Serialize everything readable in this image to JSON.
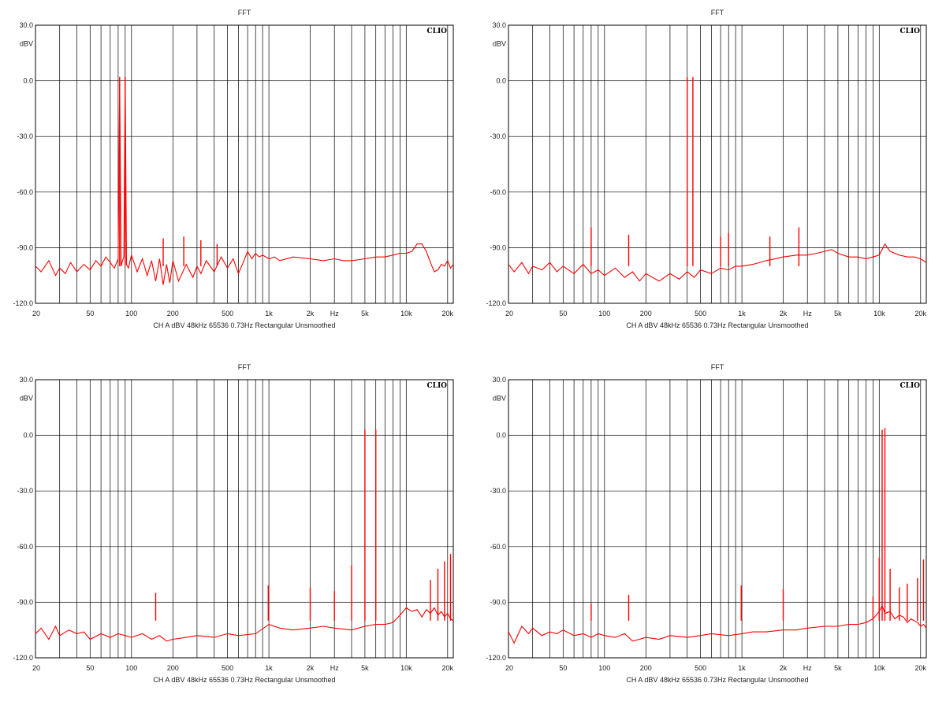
{
  "chart_data": [
    {
      "type": "line",
      "title": "FFT",
      "ylabel": "dBV",
      "badge": "CLIO",
      "xscale": "log",
      "xlim": [
        20,
        22000
      ],
      "ylim": [
        -120,
        30
      ],
      "yticks": [
        "30.0",
        "0.0",
        "-30.0",
        "-60.0",
        "-90.0",
        "-120.0"
      ],
      "xticks": [
        "20",
        "50",
        "100",
        "200",
        "500",
        "1k",
        "2k",
        "Hz",
        "5k",
        "10k",
        "20k"
      ],
      "footer": "CH A  dBV  48kHz  65536  0.73Hz  Rectangular  Unsmoothed",
      "grid": true,
      "color": "#ff0000",
      "series": [
        {
          "x": [
            20,
            22,
            25,
            28,
            30,
            33,
            36,
            40,
            45,
            50,
            55,
            60,
            65,
            70,
            75,
            80,
            82,
            84,
            86,
            88,
            90,
            92,
            95,
            100,
            110,
            120,
            130,
            140,
            150,
            160,
            170,
            180,
            190,
            200,
            220,
            250,
            280,
            300,
            320,
            350,
            400,
            450,
            500,
            550,
            600,
            650,
            700,
            750,
            800,
            850,
            900,
            1000,
            1100,
            1200,
            1500,
            2000,
            2500,
            3000,
            3500,
            4000,
            5000,
            6000,
            7000,
            8000,
            9000,
            10000,
            11000,
            12000,
            13000,
            14000,
            15000,
            16000,
            17000,
            18000,
            19000,
            20000,
            21000,
            22000
          ],
          "y": [
            -100,
            -103,
            -97,
            -105,
            -101,
            -104,
            -98,
            -103,
            -99,
            -102,
            -97,
            -100,
            -95,
            -98,
            -101,
            -96,
            2,
            -100,
            -97,
            -95,
            2,
            -99,
            -101,
            -94,
            -103,
            -96,
            -105,
            -97,
            -108,
            -96,
            -110,
            -99,
            -109,
            -97,
            -108,
            -99,
            -106,
            -100,
            -104,
            -97,
            -103,
            -95,
            -101,
            -96,
            -104,
            -98,
            -92,
            -96,
            -93,
            -95,
            -94,
            -96,
            -95,
            -97,
            -95,
            -96,
            -97,
            -96,
            -97,
            -97,
            -96,
            -95,
            -95,
            -94,
            -93,
            -93,
            -92,
            -88,
            -88,
            -92,
            -98,
            -103,
            -102,
            -99,
            -100,
            -97,
            -101,
            -99
          ]
        }
      ],
      "spikes": [
        {
          "x": 82,
          "y": 2
        },
        {
          "x": 90,
          "y": 2
        },
        {
          "x": 170,
          "y": -85
        },
        {
          "x": 240,
          "y": -84
        },
        {
          "x": 320,
          "y": -86
        },
        {
          "x": 420,
          "y": -88
        }
      ]
    },
    {
      "type": "line",
      "title": "FFT",
      "ylabel": "dBV",
      "badge": "CLIO",
      "xscale": "log",
      "xlim": [
        20,
        22000
      ],
      "ylim": [
        -120,
        30
      ],
      "yticks": [
        "30.0",
        "0.0",
        "-30.0",
        "-60.0",
        "-90.0",
        "-120.0"
      ],
      "xticks": [
        "20",
        "50",
        "100",
        "200",
        "500",
        "1k",
        "2k",
        "Hz",
        "5k",
        "10k",
        "20k"
      ],
      "footer": "CH A  dBV  48kHz  65536  0.73Hz  Rectangular  Unsmoothed",
      "grid": true,
      "color": "#ff0000",
      "series": [
        {
          "x": [
            20,
            22,
            25,
            28,
            30,
            35,
            40,
            45,
            50,
            60,
            70,
            80,
            90,
            100,
            120,
            140,
            160,
            180,
            200,
            250,
            300,
            350,
            400,
            450,
            500,
            600,
            700,
            800,
            900,
            1000,
            1200,
            1500,
            2000,
            2500,
            3000,
            3500,
            4000,
            4500,
            5000,
            6000,
            7000,
            8000,
            9000,
            10000,
            11000,
            12000,
            14000,
            16000,
            18000,
            20000,
            22000
          ],
          "y": [
            -99,
            -103,
            -98,
            -104,
            -100,
            -102,
            -98,
            -103,
            -100,
            -104,
            -99,
            -104,
            -102,
            -105,
            -101,
            -106,
            -103,
            -108,
            -104,
            -108,
            -104,
            -107,
            -103,
            -106,
            -102,
            -104,
            -101,
            -102,
            -100,
            -100,
            -99,
            -97,
            -95,
            -94,
            -94,
            -93,
            -92,
            -91,
            -93,
            -95,
            -95,
            -96,
            -95,
            -94,
            -88,
            -92,
            -94,
            -95,
            -95,
            -96,
            -98
          ]
        }
      ],
      "spikes": [
        {
          "x": 80,
          "y": -79
        },
        {
          "x": 150,
          "y": -83
        },
        {
          "x": 400,
          "y": 2
        },
        {
          "x": 440,
          "y": 2
        },
        {
          "x": 700,
          "y": -84
        },
        {
          "x": 800,
          "y": -82
        },
        {
          "x": 1600,
          "y": -84
        },
        {
          "x": 2600,
          "y": -79
        }
      ]
    },
    {
      "type": "line",
      "title": "FFT",
      "ylabel": "dBV",
      "badge": "CLIO",
      "xscale": "log",
      "xlim": [
        20,
        22000
      ],
      "ylim": [
        -120,
        30
      ],
      "yticks": [
        "30.0",
        "0.0",
        "-30.0",
        "-60.0",
        "-90.0",
        "-120.0"
      ],
      "xticks": [
        "20",
        "50",
        "100",
        "200",
        "500",
        "1k",
        "2k",
        "Hz",
        "5k",
        "10k",
        "20k"
      ],
      "footer": "CH A  dBV  48kHz  65536  0.73Hz  Rectangular  Unsmoothed",
      "grid": true,
      "color": "#ff0000",
      "series": [
        {
          "x": [
            20,
            22,
            25,
            28,
            30,
            35,
            40,
            45,
            50,
            60,
            70,
            80,
            90,
            100,
            120,
            140,
            160,
            180,
            200,
            250,
            300,
            400,
            500,
            600,
            800,
            1000,
            1200,
            1500,
            2000,
            2500,
            3000,
            4000,
            5000,
            6000,
            7000,
            8000,
            9000,
            10000,
            11000,
            12000,
            13000,
            14000,
            15000,
            16000,
            17000,
            18000,
            19000,
            20000,
            21000,
            22000
          ],
          "y": [
            -107,
            -104,
            -110,
            -103,
            -108,
            -105,
            -107,
            -106,
            -110,
            -107,
            -109,
            -107,
            -108,
            -109,
            -107,
            -110,
            -108,
            -111,
            -110,
            -109,
            -108,
            -109,
            -107,
            -108,
            -107,
            -102,
            -104,
            -105,
            -104,
            -103,
            -104,
            -105,
            -103,
            -102,
            -102,
            -101,
            -97,
            -93,
            -95,
            -94,
            -98,
            -94,
            -96,
            -93,
            -97,
            -95,
            -98,
            -96,
            -99,
            -100
          ]
        }
      ],
      "spikes": [
        {
          "x": 150,
          "y": -85
        },
        {
          "x": 990,
          "y": -81
        },
        {
          "x": 2000,
          "y": -82
        },
        {
          "x": 3000,
          "y": -84
        },
        {
          "x": 4000,
          "y": -70
        },
        {
          "x": 5000,
          "y": 3
        },
        {
          "x": 6000,
          "y": 3
        },
        {
          "x": 15000,
          "y": -78
        },
        {
          "x": 17000,
          "y": -72
        },
        {
          "x": 19000,
          "y": -68
        },
        {
          "x": 21000,
          "y": -64
        }
      ]
    },
    {
      "type": "line",
      "title": "FFT",
      "ylabel": "dBV",
      "badge": "CLIO",
      "xscale": "log",
      "xlim": [
        20,
        22000
      ],
      "ylim": [
        -120,
        30
      ],
      "yticks": [
        "30.0",
        "0.0",
        "-30.0",
        "-60.0",
        "-90.0",
        "-120.0"
      ],
      "xticks": [
        "20",
        "50",
        "100",
        "200",
        "500",
        "1k",
        "2k",
        "Hz",
        "5k",
        "10k",
        "20k"
      ],
      "footer": "CH A  dBV  48kHz  65536  0.73Hz  Rectangular  Unsmoothed",
      "grid": true,
      "color": "#ff0000",
      "series": [
        {
          "x": [
            20,
            22,
            25,
            28,
            30,
            35,
            40,
            45,
            50,
            60,
            70,
            80,
            90,
            100,
            120,
            140,
            160,
            180,
            200,
            250,
            300,
            400,
            500,
            600,
            800,
            1000,
            1200,
            1500,
            2000,
            2500,
            3000,
            4000,
            5000,
            6000,
            7000,
            8000,
            9000,
            10000,
            10500,
            11000,
            12000,
            13000,
            14000,
            15000,
            16000,
            17000,
            18000,
            19000,
            20000,
            21000,
            22000
          ],
          "y": [
            -106,
            -112,
            -103,
            -107,
            -104,
            -108,
            -106,
            -107,
            -105,
            -108,
            -107,
            -109,
            -107,
            -108,
            -109,
            -107,
            -111,
            -110,
            -109,
            -110,
            -108,
            -109,
            -108,
            -107,
            -108,
            -107,
            -106,
            -106,
            -105,
            -105,
            -104,
            -103,
            -103,
            -102,
            -102,
            -101,
            -99,
            -95,
            -92,
            -96,
            -95,
            -99,
            -97,
            -98,
            -101,
            -99,
            -100,
            -101,
            -103,
            -102,
            -104
          ]
        }
      ],
      "spikes": [
        {
          "x": 80,
          "y": -91
        },
        {
          "x": 150,
          "y": -86
        },
        {
          "x": 990,
          "y": -81
        },
        {
          "x": 2000,
          "y": -83
        },
        {
          "x": 9000,
          "y": -87
        },
        {
          "x": 10000,
          "y": -66
        },
        {
          "x": 10500,
          "y": 3
        },
        {
          "x": 11000,
          "y": 4
        },
        {
          "x": 12000,
          "y": -72
        },
        {
          "x": 14000,
          "y": -82
        },
        {
          "x": 16000,
          "y": -80
        },
        {
          "x": 19000,
          "y": -77
        },
        {
          "x": 21000,
          "y": -67
        }
      ]
    }
  ]
}
